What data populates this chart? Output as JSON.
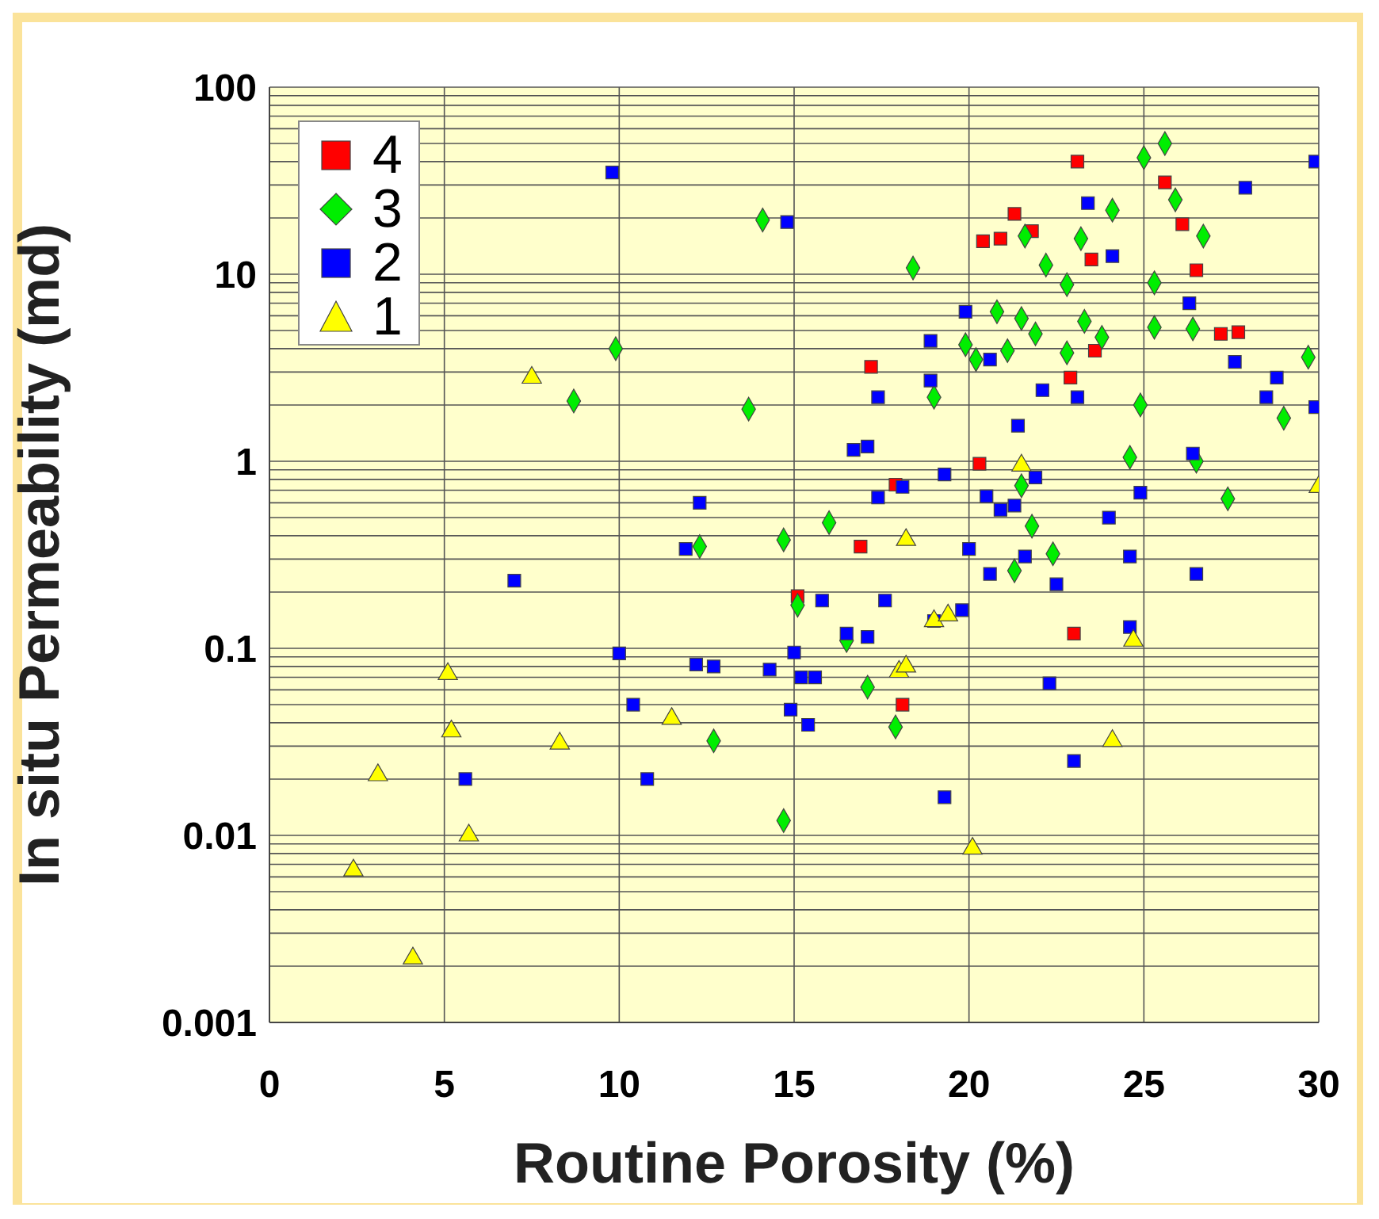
{
  "chart_data": {
    "type": "scatter",
    "xlabel": "Routine Porosity (%)",
    "ylabel": "In situ Permeability (md)",
    "log": "y",
    "grid": true,
    "legend": "top left",
    "xlim": [
      0,
      30
    ],
    "xticks": [
      0,
      5,
      10,
      15,
      20,
      25,
      30
    ],
    "ylim": [
      0.001,
      100
    ],
    "yticks": [
      0.001,
      {
        "value": 0.002,
        "label": null
      },
      {
        "value": 0.003,
        "label": null
      },
      {
        "value": 0.004,
        "label": null
      },
      {
        "value": 0.005,
        "label": null
      },
      {
        "value": 0.006,
        "label": null
      },
      {
        "value": 0.007,
        "label": null
      },
      {
        "value": 0.008,
        "label": null
      },
      {
        "value": 0.009,
        "label": null
      },
      0.01,
      {
        "value": 0.02,
        "label": null
      },
      {
        "value": 0.03,
        "label": null
      },
      {
        "value": 0.04,
        "label": null
      },
      {
        "value": 0.05,
        "label": null
      },
      {
        "value": 0.06,
        "label": null
      },
      {
        "value": 0.07,
        "label": null
      },
      {
        "value": 0.08,
        "label": null
      },
      {
        "value": 0.09,
        "label": null
      },
      0.1,
      {
        "value": 0.2,
        "label": null
      },
      {
        "value": 0.3,
        "label": null
      },
      {
        "value": 0.4,
        "label": null
      },
      {
        "value": 0.5,
        "label": null
      },
      {
        "value": 0.6,
        "label": null
      },
      {
        "value": 0.7,
        "label": null
      },
      {
        "value": 0.8,
        "label": null
      },
      {
        "value": 0.9,
        "label": null
      },
      1,
      {
        "value": 2,
        "label": null
      },
      {
        "value": 3,
        "label": null
      },
      {
        "value": 4,
        "label": null
      },
      {
        "value": 5,
        "label": null
      },
      {
        "value": 6,
        "label": null
      },
      {
        "value": 7,
        "label": null
      },
      {
        "value": 8,
        "label": null
      },
      {
        "value": 9,
        "label": null
      },
      10,
      {
        "value": 20,
        "label": null
      },
      {
        "value": 30,
        "label": null
      },
      {
        "value": 40,
        "label": null
      },
      {
        "value": 50,
        "label": null
      },
      {
        "value": 60,
        "label": null
      },
      {
        "value": 70,
        "label": null
      },
      {
        "value": 80,
        "label": null
      },
      {
        "value": 90,
        "label": null
      },
      100
    ],
    "series": [
      {
        "name": "4",
        "color": "#ff0000",
        "marker": "square",
        "x": [
          23.1,
          25.6,
          21.3,
          26.1,
          21.8,
          20.9,
          20.4,
          26.5,
          23.5,
          23.6,
          17.2,
          27.2,
          27.7,
          22.9,
          20.3,
          17.9,
          16.9,
          15.1,
          18.1,
          23.0
        ],
        "values": [
          40,
          31,
          21,
          18.5,
          17,
          15.5,
          15,
          10.5,
          12,
          3.9,
          3.2,
          4.8,
          4.9,
          2.8,
          0.97,
          0.75,
          0.35,
          0.19,
          0.05,
          0.12
        ]
      },
      {
        "name": "3",
        "color": "#00ee00",
        "marker": "diamond",
        "x": [
          9.9,
          8.7,
          14.1,
          13.7,
          18.4,
          24.1,
          25.0,
          25.6,
          25.9,
          26.7,
          21.6,
          23.2,
          22.2,
          22.8,
          25.3,
          23.3,
          20.8,
          21.5,
          21.9,
          22.8,
          23.8,
          25.3,
          26.4,
          19.9,
          21.1,
          19.0,
          24.9,
          24.6,
          26.5,
          29.7,
          29.0,
          27.4,
          21.5,
          16.0,
          21.8,
          22.4,
          12.3,
          14.7,
          15.1,
          21.3,
          16.5,
          17.1,
          17.9,
          12.7,
          14.7,
          20.2
        ],
        "values": [
          4,
          2.1,
          19.5,
          1.9,
          10.8,
          22,
          42,
          50,
          25,
          16,
          16,
          15.5,
          11.2,
          8.8,
          9,
          5.6,
          6.3,
          5.8,
          4.8,
          3.8,
          4.6,
          5.2,
          5.1,
          4.2,
          3.9,
          2.2,
          2.0,
          1.05,
          1.0,
          3.6,
          1.7,
          0.63,
          0.74,
          0.47,
          0.45,
          0.32,
          0.35,
          0.38,
          0.17,
          0.26,
          0.11,
          0.062,
          0.038,
          0.032,
          0.012,
          3.5
        ]
      },
      {
        "name": "2",
        "color": "#0000ff",
        "marker": "square",
        "x": [
          9.8,
          14.8,
          23.4,
          27.9,
          29.9,
          24.1,
          26.3,
          19.9,
          18.9,
          20.6,
          17.4,
          18.9,
          22.1,
          23.1,
          27.6,
          28.8,
          28.5,
          29.9,
          16.7,
          17.1,
          26.4,
          21.4,
          19.3,
          21.9,
          17.4,
          18.1,
          20.5,
          20.9,
          21.3,
          20.0,
          21.6,
          24.0,
          24.9,
          24.6,
          26.5,
          20.6,
          22.5,
          12.3,
          11.9,
          7.0,
          15.8,
          17.6,
          19.0,
          19.8,
          16.5,
          17.1,
          10.0,
          15.0,
          14.9,
          15.6,
          15.2,
          14.3,
          12.2,
          12.7,
          10.4,
          15.4,
          22.3,
          24.6,
          23.0,
          10.8,
          5.6,
          19.3
        ],
        "values": [
          35,
          19,
          24,
          29,
          40,
          12.5,
          7,
          6.3,
          4.4,
          3.5,
          2.2,
          2.7,
          2.4,
          2.2,
          3.4,
          2.8,
          2.2,
          1.95,
          1.15,
          1.2,
          1.1,
          1.55,
          0.85,
          0.82,
          0.64,
          0.73,
          0.65,
          0.55,
          0.58,
          0.34,
          0.31,
          0.5,
          0.68,
          0.31,
          0.25,
          0.25,
          0.22,
          0.6,
          0.34,
          0.23,
          0.18,
          0.18,
          0.14,
          0.16,
          0.12,
          0.115,
          0.094,
          0.095,
          0.047,
          0.07,
          0.07,
          0.077,
          0.082,
          0.08,
          0.05,
          0.039,
          0.065,
          0.13,
          0.025,
          0.02,
          0.02,
          0.016
        ]
      },
      {
        "name": "1",
        "color": "#ffff00",
        "marker": "triangle",
        "x": [
          7.5,
          30.0,
          21.5,
          18.2,
          19.0,
          19.4,
          24.7,
          18.0,
          18.2,
          5.1,
          5.2,
          11.5,
          8.3,
          3.1,
          24.1,
          5.7,
          2.4,
          20.1,
          4.1
        ],
        "values": [
          2.8,
          0.73,
          0.95,
          0.38,
          0.14,
          0.15,
          0.11,
          0.075,
          0.08,
          0.073,
          0.036,
          0.042,
          0.031,
          0.021,
          0.032,
          0.01,
          0.0065,
          0.0085,
          0.0022
        ]
      }
    ]
  }
}
